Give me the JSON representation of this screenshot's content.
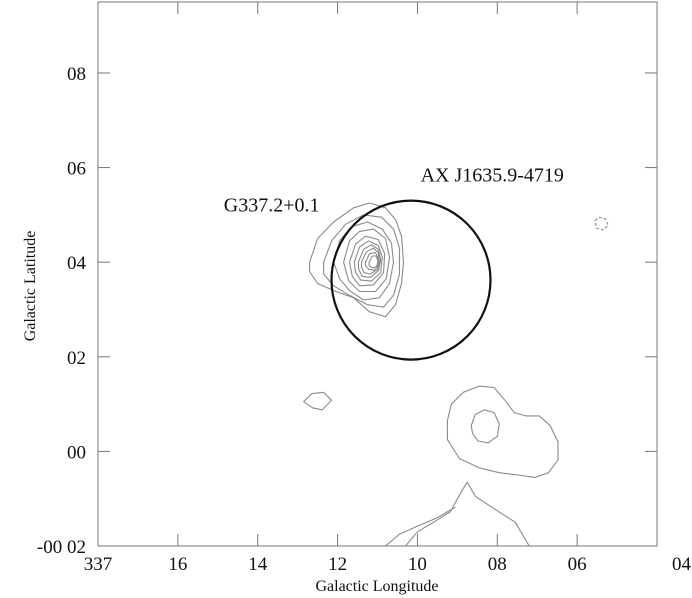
{
  "chart_data": {
    "type": "contour",
    "xlabel": "Galactic Longitude",
    "ylabel": "Galactic Latitude",
    "x_ticks": [
      {
        "value": 0.18,
        "label": "337"
      },
      {
        "value": 0.16,
        "label": "16"
      },
      {
        "value": 0.14,
        "label": "14"
      },
      {
        "value": 0.12,
        "label": "12"
      },
      {
        "value": 0.1,
        "label": "10"
      },
      {
        "value": 0.08,
        "label": "08"
      },
      {
        "value": 0.06,
        "label": "06"
      },
      {
        "value": 0.04,
        "label": "04"
      }
    ],
    "y_ticks": [
      {
        "value": -0.02,
        "label": "-00 02"
      },
      {
        "value": 0.0,
        "label": "00"
      },
      {
        "value": 0.02,
        "label": "02"
      },
      {
        "value": 0.04,
        "label": "04"
      },
      {
        "value": 0.06,
        "label": "06"
      },
      {
        "value": 0.08,
        "label": "08"
      }
    ],
    "xlim": [
      0.18,
      0.04
    ],
    "ylim": [
      -0.02,
      0.095
    ],
    "annotations": [
      {
        "text": "G337.2+0.1",
        "x": 0.1485,
        "y": 0.0507
      },
      {
        "text": "AX J1635.9-4719",
        "x": 0.0992,
        "y": 0.0571
      }
    ],
    "circles": [
      {
        "name": "xray-error-circle",
        "cx": 0.1016,
        "cy": 0.0362,
        "r": 0.0199
      }
    ],
    "contours": [
      {
        "level": 1,
        "closed": true,
        "points": [
          [
            0.127,
            0.04
          ],
          [
            0.125,
            0.045
          ],
          [
            0.121,
            0.0485
          ],
          [
            0.116,
            0.0515
          ],
          [
            0.112,
            0.0525
          ],
          [
            0.108,
            0.0515
          ],
          [
            0.1055,
            0.049
          ],
          [
            0.104,
            0.0455
          ],
          [
            0.1035,
            0.04
          ],
          [
            0.104,
            0.0355
          ],
          [
            0.1055,
            0.031
          ],
          [
            0.108,
            0.0285
          ],
          [
            0.112,
            0.0295
          ],
          [
            0.116,
            0.0325
          ],
          [
            0.121,
            0.034
          ],
          [
            0.125,
            0.0355
          ],
          [
            0.127,
            0.038
          ]
        ]
      },
      {
        "level": 2,
        "closed": true,
        "points": [
          [
            0.1235,
            0.04
          ],
          [
            0.1215,
            0.0445
          ],
          [
            0.118,
            0.048
          ],
          [
            0.1135,
            0.05
          ],
          [
            0.109,
            0.0495
          ],
          [
            0.106,
            0.047
          ],
          [
            0.1045,
            0.043
          ],
          [
            0.1045,
            0.0375
          ],
          [
            0.106,
            0.033
          ],
          [
            0.1085,
            0.0305
          ],
          [
            0.1125,
            0.031
          ],
          [
            0.117,
            0.033
          ],
          [
            0.121,
            0.035
          ],
          [
            0.1235,
            0.0375
          ]
        ]
      },
      {
        "level": 3,
        "closed": true,
        "points": [
          [
            0.121,
            0.04
          ],
          [
            0.1195,
            0.0445
          ],
          [
            0.1165,
            0.0475
          ],
          [
            0.1125,
            0.0485
          ],
          [
            0.1088,
            0.047
          ],
          [
            0.1065,
            0.044
          ],
          [
            0.106,
            0.04
          ],
          [
            0.107,
            0.0355
          ],
          [
            0.1095,
            0.0325
          ],
          [
            0.1135,
            0.032
          ],
          [
            0.117,
            0.034
          ],
          [
            0.1195,
            0.0365
          ]
        ]
      },
      {
        "level": 4,
        "closed": true,
        "points": [
          [
            0.1185,
            0.04
          ],
          [
            0.117,
            0.0445
          ],
          [
            0.1145,
            0.0465
          ],
          [
            0.111,
            0.047
          ],
          [
            0.108,
            0.045
          ],
          [
            0.107,
            0.041
          ],
          [
            0.1078,
            0.0365
          ],
          [
            0.1105,
            0.0338
          ],
          [
            0.1145,
            0.0338
          ],
          [
            0.1172,
            0.036
          ]
        ]
      },
      {
        "level": 5,
        "closed": true,
        "points": [
          [
            0.117,
            0.04
          ],
          [
            0.1155,
            0.0438
          ],
          [
            0.113,
            0.0455
          ],
          [
            0.1098,
            0.0448
          ],
          [
            0.1082,
            0.0418
          ],
          [
            0.1085,
            0.0378
          ],
          [
            0.111,
            0.0352
          ],
          [
            0.1145,
            0.035
          ],
          [
            0.1163,
            0.037
          ]
        ]
      },
      {
        "level": 6,
        "closed": true,
        "points": [
          [
            0.1158,
            0.04
          ],
          [
            0.1145,
            0.0432
          ],
          [
            0.1122,
            0.0445
          ],
          [
            0.1098,
            0.0435
          ],
          [
            0.1088,
            0.041
          ],
          [
            0.1092,
            0.0378
          ],
          [
            0.1115,
            0.036
          ],
          [
            0.1142,
            0.0362
          ],
          [
            0.1155,
            0.0378
          ]
        ]
      },
      {
        "level": 7,
        "closed": true,
        "points": [
          [
            0.1148,
            0.04
          ],
          [
            0.1135,
            0.0427
          ],
          [
            0.1115,
            0.0437
          ],
          [
            0.1098,
            0.0427
          ],
          [
            0.1092,
            0.0405
          ],
          [
            0.1097,
            0.0383
          ],
          [
            0.1117,
            0.0368
          ],
          [
            0.1138,
            0.037
          ],
          [
            0.1147,
            0.0385
          ]
        ]
      },
      {
        "level": 8,
        "closed": true,
        "points": [
          [
            0.114,
            0.04
          ],
          [
            0.1128,
            0.0422
          ],
          [
            0.111,
            0.043
          ],
          [
            0.1098,
            0.042
          ],
          [
            0.1095,
            0.04
          ],
          [
            0.11,
            0.0385
          ],
          [
            0.1118,
            0.0375
          ],
          [
            0.1134,
            0.0378
          ],
          [
            0.114,
            0.039
          ]
        ]
      },
      {
        "level": 9,
        "closed": true,
        "points": [
          [
            0.113,
            0.04
          ],
          [
            0.112,
            0.0418
          ],
          [
            0.1105,
            0.042
          ],
          [
            0.1098,
            0.0408
          ],
          [
            0.1098,
            0.0393
          ],
          [
            0.1108,
            0.0383
          ],
          [
            0.1122,
            0.0385
          ],
          [
            0.113,
            0.0393
          ]
        ]
      },
      {
        "level": 10,
        "closed": true,
        "points": [
          [
            0.1121,
            0.04
          ],
          [
            0.1113,
            0.0413
          ],
          [
            0.1103,
            0.0413
          ],
          [
            0.1099,
            0.0402
          ],
          [
            0.1102,
            0.0391
          ],
          [
            0.1112,
            0.0388
          ],
          [
            0.1121,
            0.0393
          ]
        ]
      },
      {
        "level": 1,
        "closed": true,
        "points": [
          [
            0.1285,
            0.0105
          ],
          [
            0.1265,
            0.0122
          ],
          [
            0.1235,
            0.0125
          ],
          [
            0.1215,
            0.0108
          ],
          [
            0.1238,
            0.0088
          ],
          [
            0.1262,
            0.0092
          ]
        ]
      },
      {
        "level": 1,
        "closed": false,
        "points": [
          [
            0.103,
            -0.02
          ],
          [
            0.1,
            -0.017
          ],
          [
            0.096,
            -0.015
          ],
          [
            0.0918,
            -0.0128
          ],
          [
            0.089,
            -0.0085
          ],
          [
            0.0875,
            -0.0065
          ],
          [
            0.0855,
            -0.0095
          ],
          [
            0.081,
            -0.012
          ],
          [
            0.0755,
            -0.015
          ],
          [
            0.072,
            -0.02
          ]
        ]
      },
      {
        "level": 1,
        "closed": false,
        "points": [
          [
            0.108,
            -0.02
          ],
          [
            0.1045,
            -0.0175
          ],
          [
            0.1,
            -0.0158
          ],
          [
            0.0955,
            -0.0142
          ],
          [
            0.0905,
            -0.0118
          ]
        ]
      },
      {
        "level": 1,
        "closed": true,
        "points": [
          [
            0.0925,
            0.0065
          ],
          [
            0.0915,
            0.01
          ],
          [
            0.0885,
            0.0125
          ],
          [
            0.0845,
            0.0138
          ],
          [
            0.0808,
            0.0135
          ],
          [
            0.0778,
            0.0105
          ],
          [
            0.0758,
            0.0082
          ],
          [
            0.0728,
            0.0075
          ],
          [
            0.0695,
            0.0075
          ],
          [
            0.0668,
            0.0055
          ],
          [
            0.0648,
            0.002
          ],
          [
            0.0648,
            -0.0018
          ],
          [
            0.0672,
            -0.0045
          ],
          [
            0.0705,
            -0.0055
          ],
          [
            0.0748,
            -0.005
          ],
          [
            0.0795,
            -0.0045
          ],
          [
            0.0845,
            -0.0035
          ],
          [
            0.0895,
            -0.0015
          ],
          [
            0.0925,
            0.0025
          ]
        ]
      },
      {
        "level": 2,
        "closed": true,
        "points": [
          [
            0.0865,
            0.0055
          ],
          [
            0.0855,
            0.0078
          ],
          [
            0.0832,
            0.0088
          ],
          [
            0.0808,
            0.0082
          ],
          [
            0.0795,
            0.0058
          ],
          [
            0.08,
            0.0032
          ],
          [
            0.0823,
            0.0018
          ],
          [
            0.0848,
            0.0022
          ],
          [
            0.0862,
            0.0038
          ]
        ]
      }
    ],
    "negative_contours": [
      {
        "closed": true,
        "points": [
          [
            0.0555,
            0.0488
          ],
          [
            0.0545,
            0.0495
          ],
          [
            0.053,
            0.0492
          ],
          [
            0.0522,
            0.0478
          ],
          [
            0.0535,
            0.0468
          ],
          [
            0.0552,
            0.0472
          ]
        ]
      }
    ]
  }
}
